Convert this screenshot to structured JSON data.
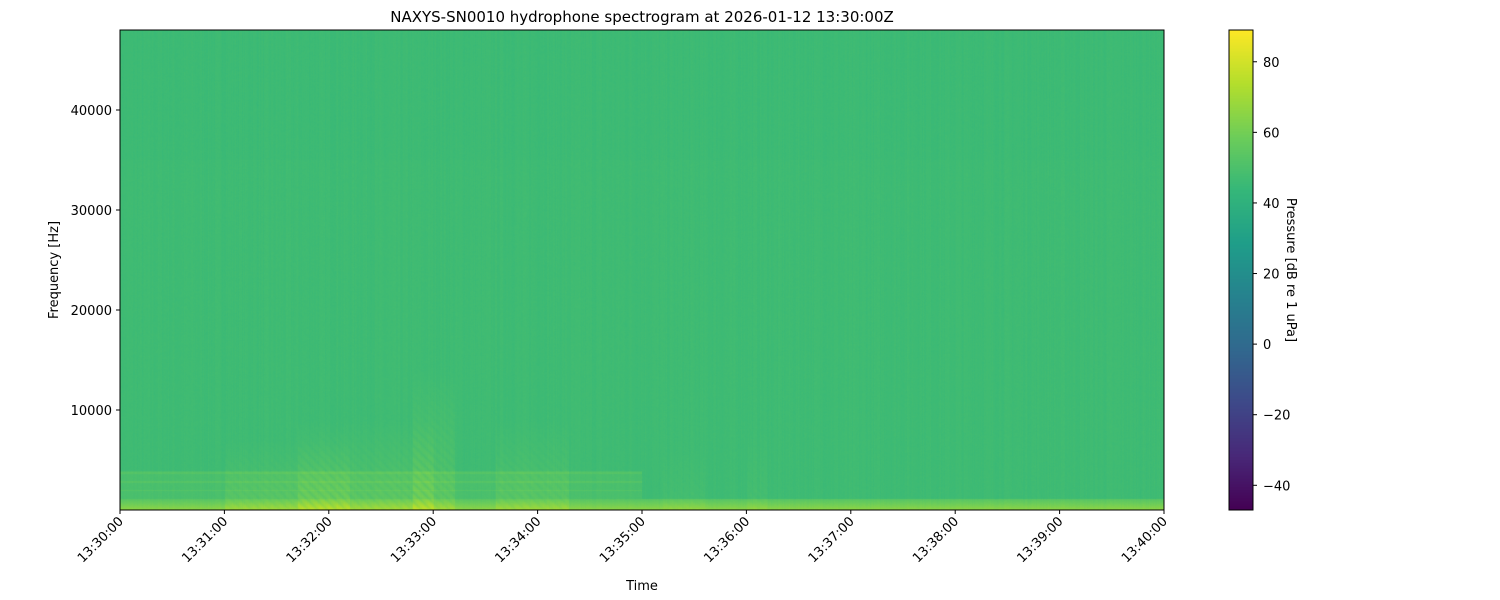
{
  "chart_data": {
    "type": "heatmap",
    "title": "NAXYS-SN0010 hydrophone spectrogram at 2026-01-12 13:30:00Z",
    "xlabel": "Time",
    "ylabel": "Frequency [Hz]",
    "x_ticks": [
      "13:30:00",
      "13:31:00",
      "13:32:00",
      "13:33:00",
      "13:34:00",
      "13:35:00",
      "13:36:00",
      "13:37:00",
      "13:38:00",
      "13:39:00",
      "13:40:00"
    ],
    "xlim": [
      "13:30:00",
      "13:40:00"
    ],
    "y_ticks": [
      10000,
      20000,
      30000,
      40000
    ],
    "ylim": [
      0,
      48000
    ],
    "colormap": "viridis",
    "colorbar": {
      "label": "Pressure [dB re 1 uPa]",
      "ticks": [
        -40,
        -20,
        0,
        20,
        40,
        60,
        80
      ],
      "range": [
        -47,
        89
      ]
    },
    "grid": false
  }
}
